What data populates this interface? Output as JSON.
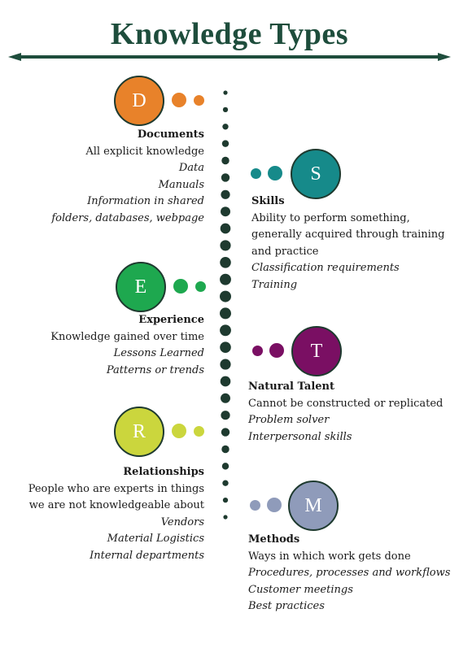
{
  "title": "Knowledge Types",
  "colors": {
    "title": "#1e4d3c",
    "spine": "#1e3a2f",
    "documents": "#e8822a",
    "skills": "#168a8a",
    "experience": "#1ea84f",
    "natural_talent": "#7a0f63",
    "relationships": "#cbd63d",
    "methods": "#8f9bba"
  },
  "documents": {
    "letter": "D",
    "heading": "Documents",
    "lines": [
      "All explicit knowledge"
    ],
    "examples": [
      "Data",
      "Manuals",
      "Information in shared",
      "folders, databases, webpage"
    ]
  },
  "skills": {
    "letter": "S",
    "heading": "Skills",
    "lines": [
      "Ability to perform something,",
      "generally acquired through training",
      "and practice"
    ],
    "examples": [
      "Classification requirements",
      "Training"
    ]
  },
  "experience": {
    "letter": "E",
    "heading": "Experience",
    "lines": [
      "Knowledge gained over time"
    ],
    "examples": [
      "Lessons Learned",
      "Patterns or trends"
    ]
  },
  "natural_talent": {
    "letter": "T",
    "heading": "Natural Talent",
    "lines": [
      "Cannot be constructed or replicated"
    ],
    "examples": [
      "Problem solver",
      "Interpersonal skills"
    ]
  },
  "relationships": {
    "letter": "R",
    "heading": "Relationships",
    "lines": [
      "People who are experts in things",
      "we are not knowledgeable about"
    ],
    "examples": [
      "Vendors",
      "Material Logistics",
      "Internal departments"
    ]
  },
  "methods": {
    "letter": "M",
    "heading": "Methods",
    "lines": [
      "Ways in which work gets done"
    ],
    "examples": [
      "Procedures, processes and workflows",
      "Customer meetings",
      "Best practices"
    ]
  }
}
